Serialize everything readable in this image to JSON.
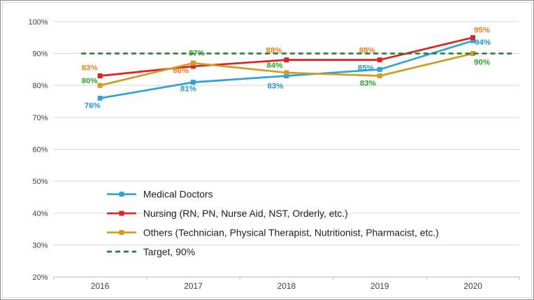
{
  "chart_data": {
    "type": "line",
    "title": "",
    "xlabel": "",
    "ylabel": "",
    "categories": [
      "2016",
      "2017",
      "2018",
      "2019",
      "2020"
    ],
    "ylim": [
      20,
      100
    ],
    "yticks": [
      "100%",
      "90%",
      "80%",
      "70%",
      "60%",
      "50%",
      "40%",
      "30%",
      "20%"
    ],
    "grid": true,
    "legend_position": "inside-bottom-left",
    "colors": {
      "grid": "#d9d9d9",
      "axis": "#bfbfbf",
      "tick_text": "#3f3f3f",
      "legend_text": "#1f1f1f"
    },
    "series": [
      {
        "name": "Medical Doctors",
        "values": [
          76,
          81,
          83,
          85,
          94
        ],
        "color": "#2da2db",
        "label_color": "#2196d6",
        "label_offsets": [
          [
            -11,
            14
          ],
          [
            -7,
            13
          ],
          [
            -16,
            18
          ],
          [
            -20,
            1
          ],
          [
            14,
            6
          ]
        ]
      },
      {
        "name": "Nursing (RN, PN, Nurse Aid, NST, Orderly, etc.)",
        "values": [
          83,
          86,
          88,
          88,
          95
        ],
        "color": "#de2020",
        "label_color": "#e87e1c",
        "label_offsets": [
          [
            -15,
            -8
          ],
          [
            -18,
            10
          ],
          [
            -18,
            -10
          ],
          [
            -18,
            -10
          ],
          [
            13,
            -7
          ]
        ]
      },
      {
        "name": "Others (Technician, Physical Therapist, Nutritionist, Pharmacist, etc.)",
        "values": [
          80,
          87,
          84,
          83,
          90
        ],
        "color": "#ce9c22",
        "label_color": "#28a428",
        "label_offsets": [
          [
            -15,
            -3
          ],
          [
            5,
            -11
          ],
          [
            -17,
            -7
          ],
          [
            -17,
            14
          ],
          [
            13,
            16
          ]
        ]
      },
      {
        "name": "Target, 90%",
        "type": "target",
        "value": 90,
        "color": "#1f7a33"
      }
    ]
  }
}
